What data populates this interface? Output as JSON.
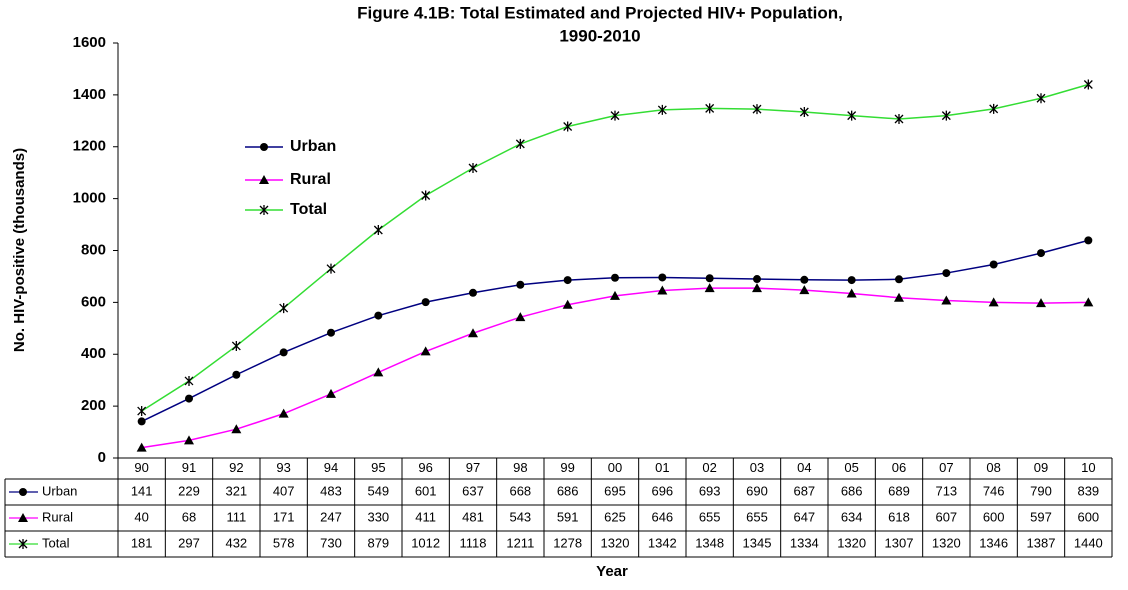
{
  "chart_data": {
    "type": "line",
    "title": [
      "Figure 4.1B:  Total Estimated and Projected HIV+ Population,",
      "1990-2010"
    ],
    "x_label": "Year",
    "y_label": "No. HIV-positive (thousands)",
    "categories": [
      "90",
      "91",
      "92",
      "93",
      "94",
      "95",
      "96",
      "97",
      "98",
      "99",
      "00",
      "01",
      "02",
      "03",
      "04",
      "05",
      "06",
      "07",
      "08",
      "09",
      "10"
    ],
    "series": [
      {
        "name": "Urban",
        "color": "#000080",
        "marker": "circle",
        "values": [
          141,
          229,
          321,
          407,
          483,
          549,
          601,
          637,
          668,
          686,
          695,
          696,
          693,
          690,
          687,
          686,
          689,
          713,
          746,
          790,
          839
        ]
      },
      {
        "name": "Rural",
        "color": "#ff00ff",
        "marker": "triangle",
        "values": [
          40,
          68,
          111,
          171,
          247,
          330,
          411,
          481,
          543,
          591,
          625,
          646,
          655,
          655,
          647,
          634,
          618,
          607,
          600,
          597,
          600
        ]
      },
      {
        "name": "Total",
        "color": "#33dd33",
        "marker": "star",
        "values": [
          181,
          297,
          432,
          578,
          730,
          879,
          1012,
          1118,
          1211,
          1278,
          1320,
          1342,
          1348,
          1345,
          1334,
          1320,
          1307,
          1320,
          1346,
          1387,
          1440
        ]
      }
    ],
    "ylim": [
      0,
      1600
    ],
    "yticks": [
      0,
      200,
      400,
      600,
      800,
      1000,
      1200,
      1400,
      1600
    ],
    "grid": false
  }
}
